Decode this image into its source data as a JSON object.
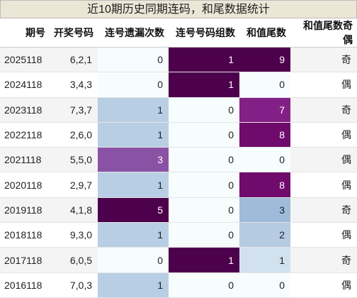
{
  "title": "近10期历史同期连码，和尾数据统计",
  "table": {
    "headers": [
      "期号",
      "开奖号码",
      "连号遗漏次数",
      "连号号码组数",
      "和值尾数",
      "和值尾数奇偶"
    ],
    "rows": [
      [
        "2025118",
        "6,2,1",
        0,
        1,
        9,
        "奇"
      ],
      [
        "2024118",
        "3,4,3",
        0,
        1,
        0,
        "偶"
      ],
      [
        "2023118",
        "7,3,7",
        1,
        0,
        7,
        "奇"
      ],
      [
        "2022118",
        "2,6,0",
        1,
        0,
        8,
        "偶"
      ],
      [
        "2021118",
        "5,5,0",
        3,
        0,
        0,
        "偶"
      ],
      [
        "2020118",
        "2,9,7",
        1,
        0,
        8,
        "偶"
      ],
      [
        "2019118",
        "4,1,8",
        5,
        0,
        3,
        "奇"
      ],
      [
        "2018118",
        "9,3,0",
        1,
        0,
        2,
        "偶"
      ],
      [
        "2017118",
        "6,0,5",
        0,
        1,
        1,
        "奇"
      ],
      [
        "2016118",
        "7,0,3",
        1,
        0,
        0,
        "偶"
      ]
    ]
  }
}
